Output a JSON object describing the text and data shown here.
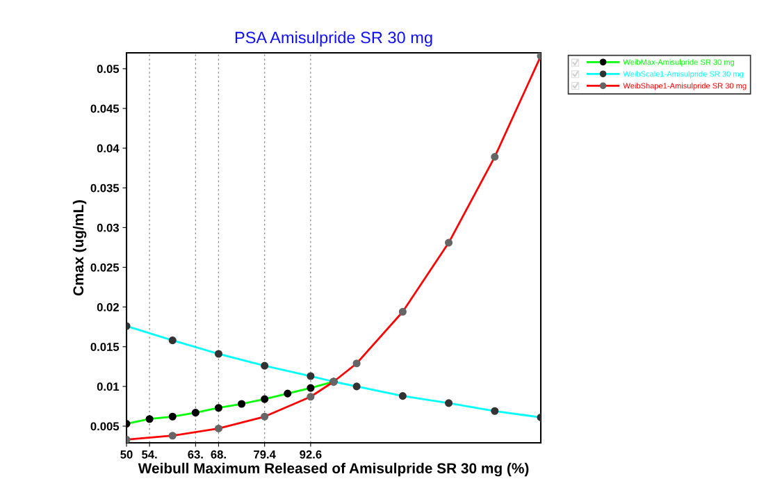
{
  "chart_data": {
    "type": "line",
    "title": "PSA Amisulpride SR 30 mg",
    "xlabel": "Weibull Maximum Released of Amisulpride SR 30 mg (%)",
    "ylabel": "Cmax (ug/mL)",
    "categories": [
      "50",
      "54.",
      null,
      "63.",
      "68.",
      null,
      "79.4",
      null,
      "92.6",
      null,
      null,
      null,
      null,
      null,
      null,
      null,
      null,
      null,
      null
    ],
    "series": [
      {
        "name": "WeibMax-Amisulpride SR 30 mg",
        "color": "#00ff00",
        "values": [
          0.0053,
          0.0059,
          0.0062,
          0.0067,
          0.0073,
          0.0078,
          0.0084,
          0.0091,
          0.0098,
          0.0106,
          null,
          null,
          null,
          null,
          null,
          null,
          null,
          null,
          null
        ]
      },
      {
        "name": "WeibScale1-Amisulpride SR 30 mg",
        "color": "#00ffff",
        "values": [
          0.0176,
          null,
          0.0158,
          null,
          0.0141,
          null,
          0.0126,
          null,
          0.0113,
          0.0106,
          0.01,
          null,
          0.0088,
          null,
          0.0079,
          null,
          0.0069,
          null,
          0.0061
        ]
      },
      {
        "name": "WeibShape1-Amisulpride SR 30 mg",
        "color": "#ff0000",
        "values": [
          0.0033,
          null,
          0.0038,
          null,
          0.0047,
          null,
          0.0062,
          null,
          0.0087,
          0.0106,
          0.0129,
          null,
          0.0194,
          null,
          0.0281,
          null,
          0.0389,
          null,
          0.0516
        ]
      }
    ],
    "ylim": [
      0.0029,
      0.052
    ],
    "yticks": [
      0.005,
      0.01,
      0.015,
      0.02,
      0.025,
      0.03,
      0.035,
      0.04,
      0.045,
      0.05
    ],
    "grid": "x",
    "legend": "top right",
    "marker": "circle",
    "line_style": "solid"
  }
}
